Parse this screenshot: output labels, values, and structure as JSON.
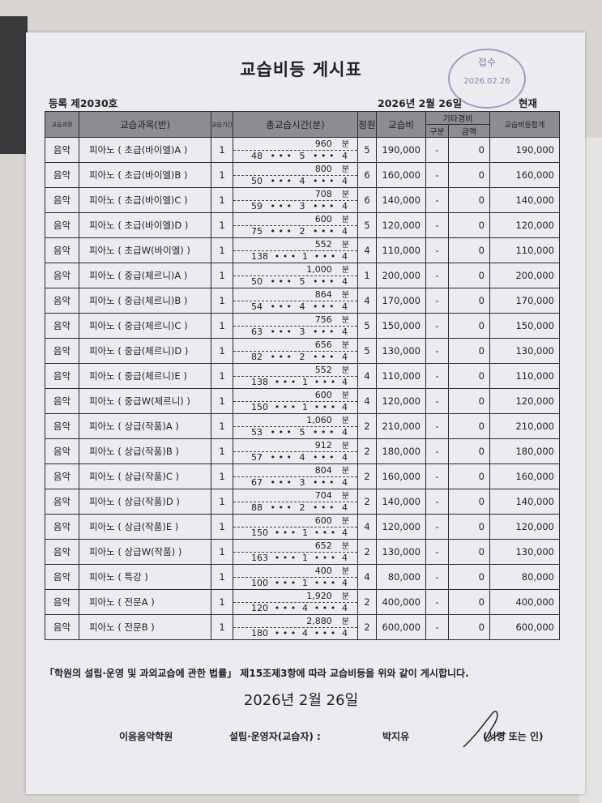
{
  "title": "교습비등 게시표",
  "registration": "등록 제2030호",
  "date_top": "2026년 2월 26일",
  "as_of": "현재",
  "stamp": {
    "text": "접수",
    "date": "2026.02.26"
  },
  "headers": {
    "course": "교습과정",
    "subject": "교습과목(반)",
    "period": "교습기간",
    "total_time": "총교습시간(분)",
    "capacity": "정원",
    "fee": "교습비",
    "other": "기타경비",
    "other_type": "구분",
    "other_amount": "금액",
    "total": "교습비등합계"
  },
  "minute_unit": "분",
  "rows": [
    {
      "course": "음악",
      "subject": "피아노  ( 초급(바이엘)A )",
      "period": "1",
      "minutes": "960",
      "per_session": "48",
      "times": "5",
      "weeks": "4",
      "capacity": "5",
      "fee": "190,000",
      "other_type": "-",
      "other_amount": "0",
      "total": "190,000"
    },
    {
      "course": "음악",
      "subject": "피아노  ( 초급(바이엘)B )",
      "period": "1",
      "minutes": "800",
      "per_session": "50",
      "times": "4",
      "weeks": "4",
      "capacity": "6",
      "fee": "160,000",
      "other_type": "-",
      "other_amount": "0",
      "total": "160,000"
    },
    {
      "course": "음악",
      "subject": "피아노  ( 초급(바이엘)C )",
      "period": "1",
      "minutes": "708",
      "per_session": "59",
      "times": "3",
      "weeks": "4",
      "capacity": "6",
      "fee": "140,000",
      "other_type": "-",
      "other_amount": "0",
      "total": "140,000"
    },
    {
      "course": "음악",
      "subject": "피아노  ( 초급(바이엘)D )",
      "period": "1",
      "minutes": "600",
      "per_session": "75",
      "times": "2",
      "weeks": "4",
      "capacity": "5",
      "fee": "120,000",
      "other_type": "-",
      "other_amount": "0",
      "total": "120,000"
    },
    {
      "course": "음악",
      "subject": "피아노  ( 초급W(바이엘) )",
      "period": "1",
      "minutes": "552",
      "per_session": "138",
      "times": "1",
      "weeks": "4",
      "capacity": "4",
      "fee": "110,000",
      "other_type": "-",
      "other_amount": "0",
      "total": "110,000"
    },
    {
      "course": "음악",
      "subject": "피아노  ( 중급(체르니)A )",
      "period": "1",
      "minutes": "1,000",
      "per_session": "50",
      "times": "5",
      "weeks": "4",
      "capacity": "1",
      "fee": "200,000",
      "other_type": "-",
      "other_amount": "0",
      "total": "200,000"
    },
    {
      "course": "음악",
      "subject": "피아노  ( 중급(체르니)B )",
      "period": "1",
      "minutes": "864",
      "per_session": "54",
      "times": "4",
      "weeks": "4",
      "capacity": "4",
      "fee": "170,000",
      "other_type": "-",
      "other_amount": "0",
      "total": "170,000"
    },
    {
      "course": "음악",
      "subject": "피아노  ( 중급(체르니)C )",
      "period": "1",
      "minutes": "756",
      "per_session": "63",
      "times": "3",
      "weeks": "4",
      "capacity": "5",
      "fee": "150,000",
      "other_type": "-",
      "other_amount": "0",
      "total": "150,000"
    },
    {
      "course": "음악",
      "subject": "피아노  ( 중급(체르니)D )",
      "period": "1",
      "minutes": "656",
      "per_session": "82",
      "times": "2",
      "weeks": "4",
      "capacity": "5",
      "fee": "130,000",
      "other_type": "-",
      "other_amount": "0",
      "total": "130,000"
    },
    {
      "course": "음악",
      "subject": "피아노  ( 중급(체르니)E )",
      "period": "1",
      "minutes": "552",
      "per_session": "138",
      "times": "1",
      "weeks": "4",
      "capacity": "4",
      "fee": "110,000",
      "other_type": "-",
      "other_amount": "0",
      "total": "110,000"
    },
    {
      "course": "음악",
      "subject": "피아노  ( 중급W(체르니) )",
      "period": "1",
      "minutes": "600",
      "per_session": "150",
      "times": "1",
      "weeks": "4",
      "capacity": "4",
      "fee": "120,000",
      "other_type": "-",
      "other_amount": "0",
      "total": "120,000"
    },
    {
      "course": "음악",
      "subject": "피아노  ( 상급(작품)A )",
      "period": "1",
      "minutes": "1,060",
      "per_session": "53",
      "times": "5",
      "weeks": "4",
      "capacity": "2",
      "fee": "210,000",
      "other_type": "-",
      "other_amount": "0",
      "total": "210,000"
    },
    {
      "course": "음악",
      "subject": "피아노  ( 상급(작품)B )",
      "period": "1",
      "minutes": "912",
      "per_session": "57",
      "times": "4",
      "weeks": "4",
      "capacity": "2",
      "fee": "180,000",
      "other_type": "-",
      "other_amount": "0",
      "total": "180,000"
    },
    {
      "course": "음악",
      "subject": "피아노  ( 상급(작품)C )",
      "period": "1",
      "minutes": "804",
      "per_session": "67",
      "times": "3",
      "weeks": "4",
      "capacity": "2",
      "fee": "160,000",
      "other_type": "-",
      "other_amount": "0",
      "total": "160,000"
    },
    {
      "course": "음악",
      "subject": "피아노  ( 상급(작품)D )",
      "period": "1",
      "minutes": "704",
      "per_session": "88",
      "times": "2",
      "weeks": "4",
      "capacity": "2",
      "fee": "140,000",
      "other_type": "-",
      "other_amount": "0",
      "total": "140,000"
    },
    {
      "course": "음악",
      "subject": "피아노  ( 상급(작품)E )",
      "period": "1",
      "minutes": "600",
      "per_session": "150",
      "times": "1",
      "weeks": "4",
      "capacity": "4",
      "fee": "120,000",
      "other_type": "-",
      "other_amount": "0",
      "total": "120,000"
    },
    {
      "course": "음악",
      "subject": "피아노  ( 상급W(작품) )",
      "period": "1",
      "minutes": "652",
      "per_session": "163",
      "times": "1",
      "weeks": "4",
      "capacity": "2",
      "fee": "130,000",
      "other_type": "-",
      "other_amount": "0",
      "total": "130,000"
    },
    {
      "course": "음악",
      "subject": "피아노  (     특강     )",
      "period": "1",
      "minutes": "400",
      "per_session": "100",
      "times": "1",
      "weeks": "4",
      "capacity": "4",
      "fee": "80,000",
      "other_type": "-",
      "other_amount": "0",
      "total": "80,000"
    },
    {
      "course": "음악",
      "subject": "피아노  (    전문A     )",
      "period": "1",
      "minutes": "1,920",
      "per_session": "120",
      "times": "4",
      "weeks": "4",
      "capacity": "2",
      "fee": "400,000",
      "other_type": "-",
      "other_amount": "0",
      "total": "400,000"
    },
    {
      "course": "음악",
      "subject": "피아노  (    전문B     )",
      "period": "1",
      "minutes": "2,880",
      "per_session": "180",
      "times": "4",
      "weeks": "4",
      "capacity": "2",
      "fee": "600,000",
      "other_type": "-",
      "other_amount": "0",
      "total": "600,000"
    }
  ],
  "statement": "「학원의 설립·운영 및 과외교습에 관한 법률」 제15조제3항에 따라 교습비등을 위와 같이 게시합니다.",
  "date_bottom": "2026년 2월 26일",
  "academy": "이음음악학원",
  "operator_label": "설립·운영자(교습자) :",
  "operator_name": "박지유",
  "signature_label": "(서명 또는 인)"
}
